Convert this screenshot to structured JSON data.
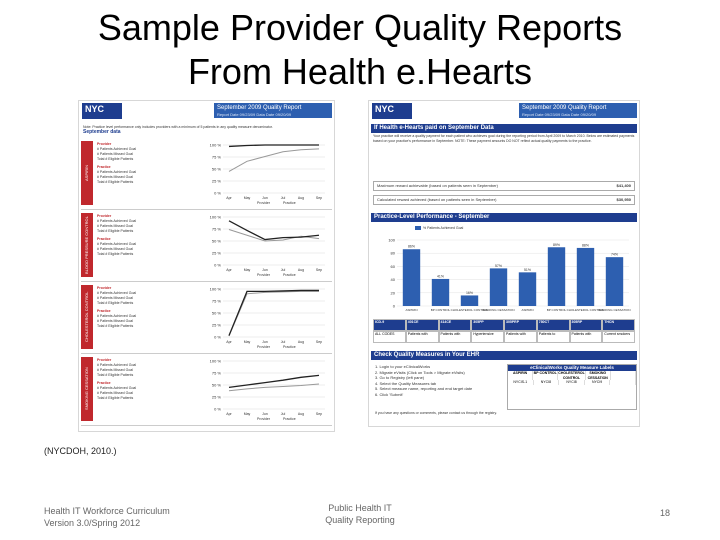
{
  "slide": {
    "title_line1": "Sample Provider Quality Reports",
    "title_line2": "From Health e.Hearts",
    "citation": "(NYCDOH, 2010.)",
    "footer_left_line1": "Health IT Workforce Curriculum",
    "footer_left_line2": "Version 3.0/Spring 2012",
    "footer_center_line1": "Public Health IT",
    "footer_center_line2": "Quality Reporting",
    "page_number": "18"
  },
  "report_left": {
    "logo": "NYC",
    "header_title": "September 2009 Quality Report",
    "header_sub": "Report Date   09/23/09     Data Date   09/20/09",
    "note": "Note: Practice level performance only includes providers with a minimum of 5 patients in any quality measure denominator.",
    "section_heading": "September data",
    "sections": [
      {
        "label": "ASPIRIN",
        "provider_rows": [
          "Provider",
          "# Patients Achieved Goal",
          "# Patients Missed Goal",
          "Total # Eligible Patients"
        ],
        "practice_rows": [
          "Practice",
          "# Patients Achieved Goal",
          "# Patients Missed Goal",
          "Total # Eligible Patients"
        ],
        "y_ticks": [
          "100 %",
          "75 %",
          "50 %",
          "25 %",
          "0 %"
        ],
        "months": [
          "Apr",
          "May",
          "Jun",
          "Jul",
          "Aug",
          "Sep"
        ],
        "provider_series": [
          0.97,
          0.99,
          1.0,
          1.0,
          1.0,
          1.0
        ],
        "practice_series": [
          0.45,
          0.66,
          0.76,
          0.86,
          0.9,
          0.92
        ]
      },
      {
        "label": "BLOOD PRESSURE CONTROL",
        "provider_rows": [
          "Provider",
          "# Patients Achieved Goal",
          "# Patients Missed Goal",
          "Total # Eligible Patients"
        ],
        "practice_rows": [
          "Practice",
          "# Patients Achieved Goal",
          "# Patients Missed Goal",
          "Total # Eligible Patients"
        ],
        "y_ticks": [
          "100 %",
          "75 %",
          "50 %",
          "25 %",
          "0 %"
        ],
        "months": [
          "Apr",
          "May",
          "Jun",
          "Jul",
          "Aug",
          "Sep"
        ],
        "provider_series": [
          0.92,
          0.72,
          0.53,
          0.57,
          0.58,
          0.62
        ],
        "practice_series": [
          0.74,
          0.62,
          0.5,
          0.52,
          0.6,
          0.55
        ]
      },
      {
        "label": "CHOLESTEROL CONTROL",
        "provider_rows": [
          "Provider",
          "# Patients Achieved Goal",
          "# Patients Missed Goal",
          "Total # Eligible Patients"
        ],
        "practice_rows": [
          "Practice",
          "# Patients Achieved Goal",
          "# Patients Missed Goal",
          "Total # Eligible Patients"
        ],
        "y_ticks": [
          "100 %",
          "75 %",
          "50 %",
          "25 %",
          "0 %"
        ],
        "months": [
          "Apr",
          "May",
          "Jun",
          "Jul",
          "Aug",
          "Sep"
        ],
        "provider_series": [
          0.03,
          0.95,
          0.95,
          0.96,
          0.97,
          0.97
        ],
        "practice_series": [
          0.02,
          0.9,
          0.93,
          0.94,
          0.95,
          0.95
        ]
      },
      {
        "label": "SMOKING CESSATION",
        "provider_rows": [
          "Provider",
          "# Patients Achieved Goal",
          "# Patients Missed Goal",
          "Total # Eligible Patients"
        ],
        "practice_rows": [
          "Practice",
          "# Patients Achieved Goal",
          "# Patients Missed Goal",
          "Total # Eligible Patients"
        ],
        "y_ticks": [
          "100 %",
          "75 %",
          "50 %",
          "25 %",
          "0 %"
        ],
        "months": [
          "Apr",
          "May",
          "Jun",
          "Jul",
          "Aug",
          "Sep"
        ],
        "provider_series": [
          0.45,
          0.5,
          0.55,
          0.6,
          0.66,
          0.7
        ],
        "practice_series": [
          0.38,
          0.42,
          0.45,
          0.47,
          0.49,
          0.52
        ]
      }
    ],
    "legend_provider": "Provider",
    "legend_practice": "Practice"
  },
  "report_right": {
    "logo": "NYC",
    "header_title": "September 2009 Quality Report",
    "header_sub": "Report Date   09/23/09     Data Date   09/20/09",
    "band_paid": "If Health e-Hearts paid on September Data",
    "paid_text": "Your practice will receive a quality payment for each patient who achieves goal during the reporting period from April 2009 to March 2010. Below are estimated payments based on your practice's performance in September. NOTE: These payment amounts DO NOT reflect actual quality payments to the practice.",
    "max_label": "Maximum reward achievable (based on patients seen in September)",
    "max_amount": "$41,400",
    "calc_label": "Calculated reward achieved (based on patients seen in September)",
    "calc_amount": "$30,950",
    "band_practice": "Practice-Level Performance - September",
    "legend": "% Patients Achieved Goal",
    "bar_chart": {
      "type": "bar",
      "categories": [
        "ASPIRIN",
        "BP CONTROL",
        "CHOLESTEROL CONTROL",
        "SMOKING CESSATION",
        "ASPIRIN",
        "BP CONTROL",
        "CHOLESTEROL CONTROL",
        "SMOKING CESSATION"
      ],
      "values": [
        86,
        41,
        16,
        57,
        51,
        89,
        88,
        74
      ],
      "ylim": [
        0,
        100
      ],
      "y_ticks": [
        "100",
        "80",
        "60",
        "40",
        "20",
        "0"
      ],
      "value_labels": [
        "86%",
        "41%",
        "16%",
        "57%",
        "51%",
        "89%",
        "88%",
        "74%"
      ]
    },
    "measure_headers": [
      "ICD-9",
      "401CE",
      "414CE",
      "305PP",
      "305PRP",
      "780CT",
      "305RP",
      "THCN"
    ],
    "measure_values": [
      "ALL CODES",
      "Patients with",
      "Patients with",
      "Hypertensive",
      "Patients with",
      "Patients to",
      "Patients with",
      "Current smokers"
    ],
    "band_check": "Check Quality Measures in Your EHR",
    "steps": [
      "1. Login to your eClinicalWorks",
      "2. Migrate eVisits (Click on Tools > Migrate eVisits)",
      "3. Go to Registry (left pane)",
      "4. Select the Quality Measures tab",
      "5. Select measure name, reporting and end target date",
      "6. Click 'Submit'"
    ],
    "labels_box_title": "eClinicalWorks Quality Measure Labels",
    "labels_box_cols": [
      "ASPIRIN",
      "BP CONTROL",
      "CHOLESTEROL CONTROL",
      "SMOKING CESSATION",
      ""
    ],
    "labels_box_vals": [
      "NYCIS-1",
      "NYCI8",
      "NYCI8",
      "NYCI9",
      ""
    ],
    "footnote": "If you have any questions or comments, please contact us through the registry."
  }
}
